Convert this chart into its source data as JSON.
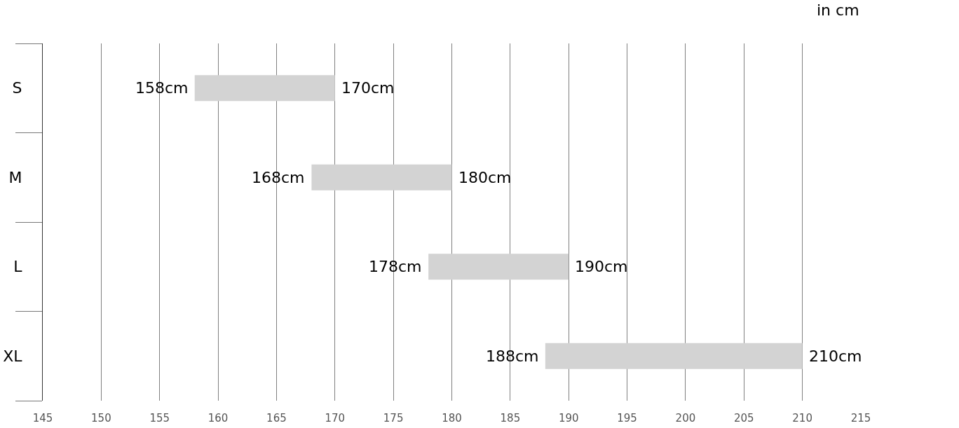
{
  "chart_data": {
    "type": "bar",
    "orientation": "horizontal",
    "xlabel": "in cm",
    "categories": [
      "S",
      "M",
      "L",
      "XL"
    ],
    "base": [
      158,
      168,
      178,
      188
    ],
    "values": [
      12,
      12,
      12,
      22
    ],
    "color": "#d3d3d3",
    "xlim": [
      145,
      215
    ],
    "xticks": [
      145,
      150,
      155,
      160,
      165,
      170,
      175,
      180,
      185,
      190,
      195,
      200,
      205,
      210,
      215
    ],
    "grid": "x",
    "annotations": [
      {
        "text": "158cm",
        "x": 158,
        "y": "S"
      },
      {
        "text": "170cm",
        "x": 170,
        "y": "S"
      },
      {
        "text": "168cm",
        "x": 168,
        "y": "M"
      },
      {
        "text": "180cm",
        "x": 180,
        "y": "M"
      },
      {
        "text": "178cm",
        "x": 178,
        "y": "L"
      },
      {
        "text": "190cm",
        "x": 190,
        "y": "L"
      },
      {
        "text": "188cm",
        "x": 188,
        "y": "XL"
      },
      {
        "text": "210cm",
        "x": 210,
        "y": "XL"
      }
    ]
  }
}
